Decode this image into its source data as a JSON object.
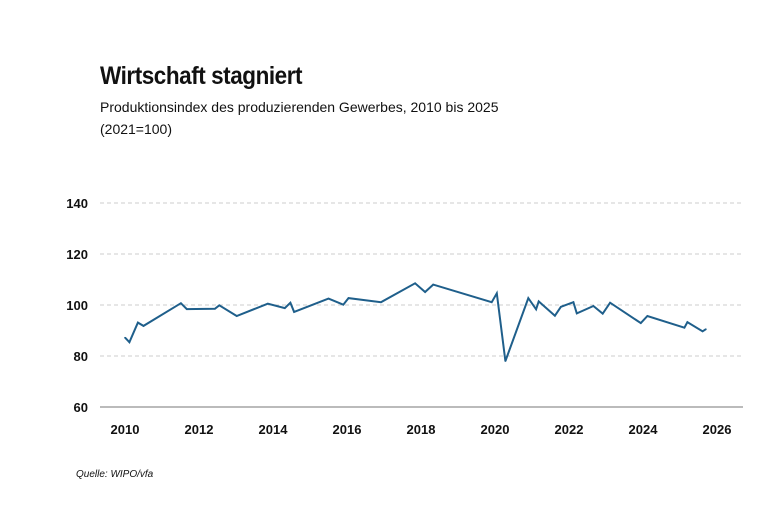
{
  "chart_data": {
    "type": "line",
    "title": "Wirtschaft stagniert",
    "subtitle": "Produktionsindex des produzierenden Gewerbes, 2010 bis 2025",
    "subtitle2": "(2021=100)",
    "source": "Quelle: WIPO/vfa",
    "xlabel": "",
    "ylabel": "",
    "xlim": [
      2010,
      2026
    ],
    "ylim": [
      60,
      140
    ],
    "x_ticks": [
      "2010",
      "2012",
      "2014",
      "2016",
      "2018",
      "2020",
      "2022",
      "2024",
      "2026"
    ],
    "y_ticks": [
      "60",
      "80",
      "100",
      "120",
      "140"
    ],
    "grid": "horizontal dashed",
    "colors": {
      "line": "#1f5f8b",
      "last_tick": "#c00000",
      "grid": "#cccccc"
    },
    "series": [
      {
        "x": [
          2010.0,
          2010.12,
          2010.35,
          2010.5,
          2011.51,
          2011.67,
          2012.43,
          2012.55,
          2013.02,
          2013.86,
          2014.32,
          2014.47,
          2014.57,
          2015.5,
          2015.9,
          2016.04,
          2016.92,
          2017.84,
          2018.11,
          2018.33,
          2019.91,
          2020.05,
          2020.28,
          2020.9,
          2021.11,
          2021.18,
          2021.62,
          2021.78,
          2022.12,
          2022.21,
          2022.66,
          2022.91,
          2023.11,
          2023.94,
          2024.12,
          2025.12,
          2025.2,
          2025.61,
          2025.7
        ],
        "y": [
          87.2,
          85.4,
          93.1,
          91.8,
          100.7,
          98.4,
          98.5,
          99.9,
          95.7,
          100.5,
          98.8,
          100.9,
          97.3,
          102.5,
          100.1,
          102.7,
          101.1,
          108.5,
          105.1,
          108.0,
          101.1,
          104.6,
          78.0,
          102.7,
          98.3,
          101.4,
          95.8,
          99.3,
          101.1,
          96.7,
          99.6,
          96.6,
          100.9,
          92.9,
          95.7,
          91.1,
          93.3,
          89.7,
          90.5
        ]
      }
    ]
  }
}
